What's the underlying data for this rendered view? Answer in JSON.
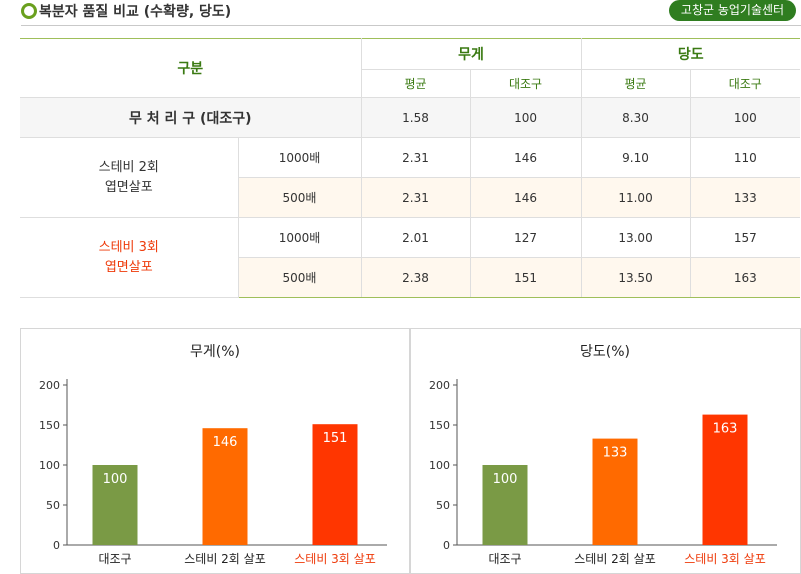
{
  "header": {
    "title": "복분자 품질 비교 (수확량, 당도)",
    "badge": "고창군 농업기술센터"
  },
  "table": {
    "col_group": "구분",
    "weight_label": "무게",
    "sugar_label": "당도",
    "avg_label": "평균",
    "ctrl_label": "대조구",
    "control_row": {
      "label": "무 처 리 구 (대조구)",
      "w_avg": "1.58",
      "w_ctrl": "100",
      "s_avg": "8.30",
      "s_ctrl": "100"
    },
    "groups": [
      {
        "label_line1": "스테비 2회",
        "label_line2": "엽면살포",
        "rows": [
          {
            "dose": "1000배",
            "w_avg": "2.31",
            "w_ctrl": "146",
            "s_avg": "9.10",
            "s_ctrl": "110"
          },
          {
            "dose": "500배",
            "w_avg": "2.31",
            "w_ctrl": "146",
            "s_avg": "11.00",
            "s_ctrl": "133"
          }
        ]
      },
      {
        "label_line1": "스테비 3회",
        "label_line2": "엽면살포",
        "rows": [
          {
            "dose": "1000배",
            "w_avg": "2.01",
            "w_ctrl": "127",
            "s_avg": "13.00",
            "s_ctrl": "157"
          },
          {
            "dose": "500배",
            "w_avg": "2.38",
            "w_ctrl": "151",
            "s_avg": "13.50",
            "s_ctrl": "163"
          }
        ]
      }
    ]
  },
  "chart_data": [
    {
      "type": "bar",
      "title": "무게(%)",
      "categories": [
        "대조구",
        "스테비 2회 살포",
        "스테비 3회 살포"
      ],
      "values": [
        100,
        146,
        151
      ],
      "colors": [
        "#7a9a45",
        "#ff6a00",
        "#ff3600"
      ],
      "highlight_color": "#ee3a0a",
      "ylim": [
        0,
        200
      ],
      "yticks": [
        0,
        50,
        100,
        150,
        200
      ],
      "grid": false
    },
    {
      "type": "bar",
      "title": "당도(%)",
      "categories": [
        "대조구",
        "스테비 2회 살포",
        "스테비 3회 살포"
      ],
      "values": [
        100,
        133,
        163
      ],
      "colors": [
        "#7a9a45",
        "#ff6a00",
        "#ff3600"
      ],
      "highlight_color": "#ee3a0a",
      "ylim": [
        0,
        200
      ],
      "yticks": [
        0,
        50,
        100,
        150,
        200
      ],
      "grid": false
    }
  ]
}
